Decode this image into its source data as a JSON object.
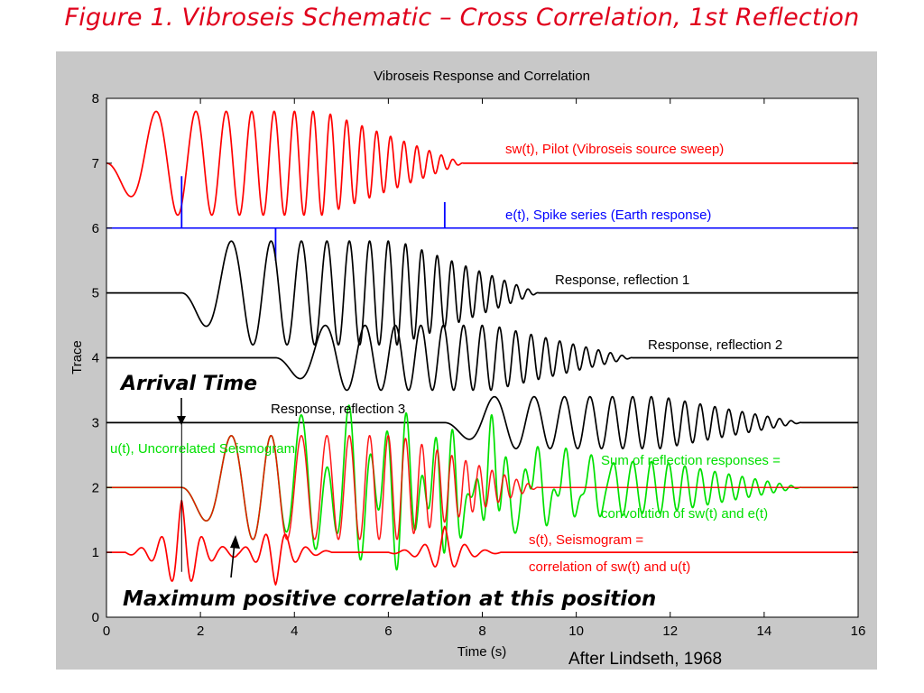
{
  "slide": {
    "title": "Figure 1.  Vibroseis Schematic – Cross Correlation, 1st Reflection",
    "credit": "After Lindseth, 1968"
  },
  "annotations": {
    "arrival": "Arrival Time",
    "max_corr": "Maximum positive correlation at this position"
  },
  "colors": {
    "pilot": "#ff0000",
    "spikes": "#0000ff",
    "response": "#000000",
    "uncorrelated": "#00e000",
    "seismogram": "#ff0000"
  },
  "chart_data": {
    "type": "line",
    "title": "Vibroseis Response and Correlation",
    "xlabel": "Time (s)",
    "ylabel": "Trace",
    "xlim": [
      0,
      16
    ],
    "ylim": [
      0,
      8
    ],
    "xticks": [
      0,
      2,
      4,
      6,
      8,
      10,
      12,
      14,
      16
    ],
    "yticks": [
      0,
      1,
      2,
      3,
      4,
      5,
      6,
      7,
      8
    ],
    "grid": false,
    "series": [
      {
        "name": "sw(t), Pilot (Vibroseis source sweep)",
        "baseline": 7,
        "color": "#ff0000",
        "kind": "sweep",
        "start": 0,
        "end": 7.6,
        "amplitude": 0.8
      },
      {
        "name": "e(t), Spike series (Earth response)",
        "baseline": 6,
        "color": "#0000ff",
        "kind": "spikes",
        "spikes": [
          {
            "t": 1.6,
            "a": 0.8
          },
          {
            "t": 3.6,
            "a": -0.5
          },
          {
            "t": 7.2,
            "a": 0.4
          }
        ]
      },
      {
        "name": "Response, reflection 1",
        "baseline": 5,
        "color": "#000000",
        "kind": "sweep",
        "start": 1.6,
        "end": 9.2,
        "amplitude": 0.8
      },
      {
        "name": "Response, reflection 2",
        "baseline": 4,
        "color": "#000000",
        "kind": "sweep",
        "start": 3.6,
        "end": 11.2,
        "amplitude": 0.5
      },
      {
        "name": "Response, reflection 3",
        "baseline": 3,
        "color": "#000000",
        "kind": "sweep",
        "start": 7.2,
        "end": 14.8,
        "amplitude": 0.4
      },
      {
        "name": "u(t), Uncorrelated Seismogram",
        "baseline": 2,
        "color": "#00e000",
        "kind": "sum",
        "amplitude": 0.8
      },
      {
        "name": "s(t), Seismogram = correlation of sw(t) and u(t)",
        "baseline": 1,
        "color": "#ff0000",
        "kind": "correlation",
        "peaks": [
          {
            "t": 1.6,
            "a": 0.8
          },
          {
            "t": 3.6,
            "a": -0.5
          },
          {
            "t": 7.2,
            "a": 0.4
          }
        ]
      }
    ],
    "labels": {
      "pilot": "sw(t), Pilot (Vibroseis source sweep)",
      "spikes": "e(t), Spike series (Earth response)",
      "resp1": "Response, reflection 1",
      "resp2": "Response, reflection 2",
      "resp3": "Response, reflection 3",
      "uncorrelated": "u(t), Uncorrelated Seismogram",
      "sum1": "Sum of reflection responses =",
      "sum2": "convolution of sw(t) and e(t)",
      "seis1": "s(t), Seismogram =",
      "seis2": "correlation of sw(t) and u(t)"
    }
  }
}
